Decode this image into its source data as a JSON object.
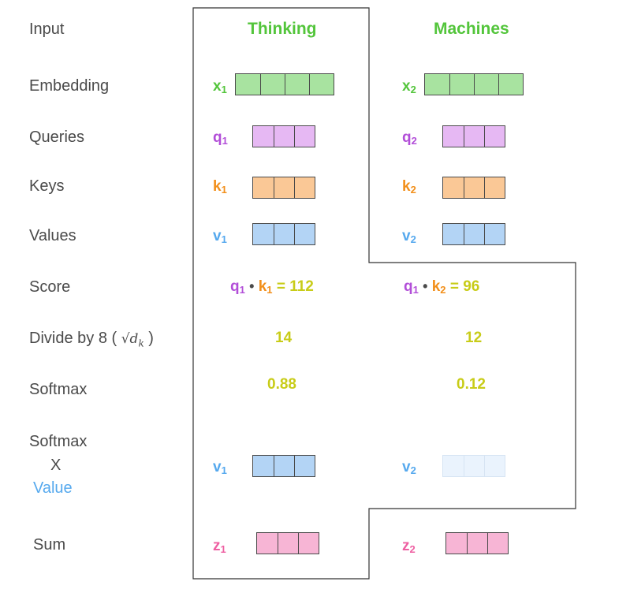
{
  "rows": {
    "input": "Input",
    "embedding": "Embedding",
    "queries": "Queries",
    "keys": "Keys",
    "values": "Values",
    "score": "Score",
    "divide_prefix": "Divide by 8 (",
    "divide_suffix": ")",
    "softmax": "Softmax",
    "softmax_x_value_1": "Softmax",
    "softmax_x_value_2": "X",
    "softmax_x_value_3": "Value",
    "sum": "Sum"
  },
  "words": [
    "Thinking",
    "Machines"
  ],
  "vector_labels": {
    "x1": "x",
    "x2": "x",
    "q1": "q",
    "q2": "q",
    "k1": "k",
    "k2": "k",
    "v1": "v",
    "v2": "v",
    "z1": "z",
    "z2": "z",
    "sub1": "1",
    "sub2": "2"
  },
  "score_equation": {
    "op_dot": "•",
    "eq": "=",
    "score1": "112",
    "score2": "96"
  },
  "divided": [
    "14",
    "12"
  ],
  "softmax_values": [
    "0.88",
    "0.12"
  ],
  "sqrt_symbol": "√d",
  "sqrt_sub": "k",
  "colors": {
    "embedding": "#a8e3a0",
    "queries": "#e6b8f3",
    "keys": "#fac896",
    "values": "#b3d4f5",
    "values_faded": "#eaf3fd",
    "sum": "#f7b5d5",
    "green": "#53c53b",
    "purple": "#b24ed8",
    "orange": "#f28f1a",
    "blue": "#56a9ee",
    "pink": "#ee5fa2",
    "yellow": "#c8cc18"
  }
}
